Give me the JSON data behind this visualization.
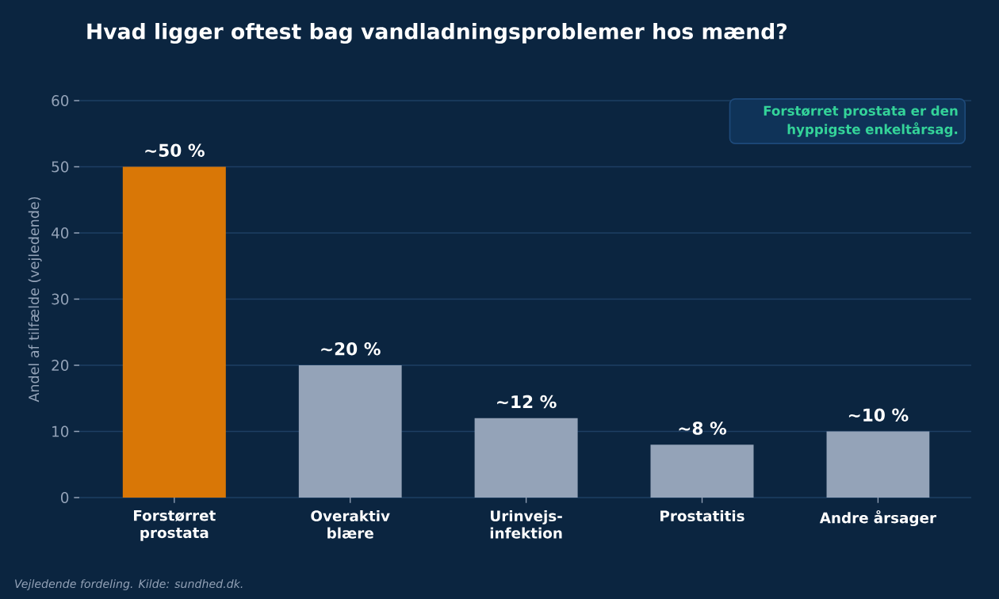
{
  "chart_data": {
    "type": "bar",
    "title": "Hvad ligger oftest bag vandladningsproblemer hos mænd?",
    "ylabel": "Andel af tilfælde (vejledende)",
    "categories": [
      "Forstørret prostata",
      "Overaktiv blære",
      "Urinvejs-infektion",
      "Prostatitis",
      "Andre årsager"
    ],
    "values": [
      50,
      20,
      12,
      8,
      10
    ],
    "value_labels": [
      "~50 %",
      "~20 %",
      "~12 %",
      "~8 %",
      "~10 %"
    ],
    "colors": [
      "#d97706",
      "#94a3b8",
      "#94a3b8",
      "#94a3b8",
      "#94a3b8"
    ],
    "ylim": [
      0,
      60
    ],
    "yticks": [
      0,
      10,
      20,
      30,
      40,
      50,
      60
    ],
    "grid": "y",
    "annotations": [
      "Forstørret prostata er den hyppigste enkeltårsag.",
      "Vejledende fordeling. Kilde: sundhed.dk."
    ]
  }
}
